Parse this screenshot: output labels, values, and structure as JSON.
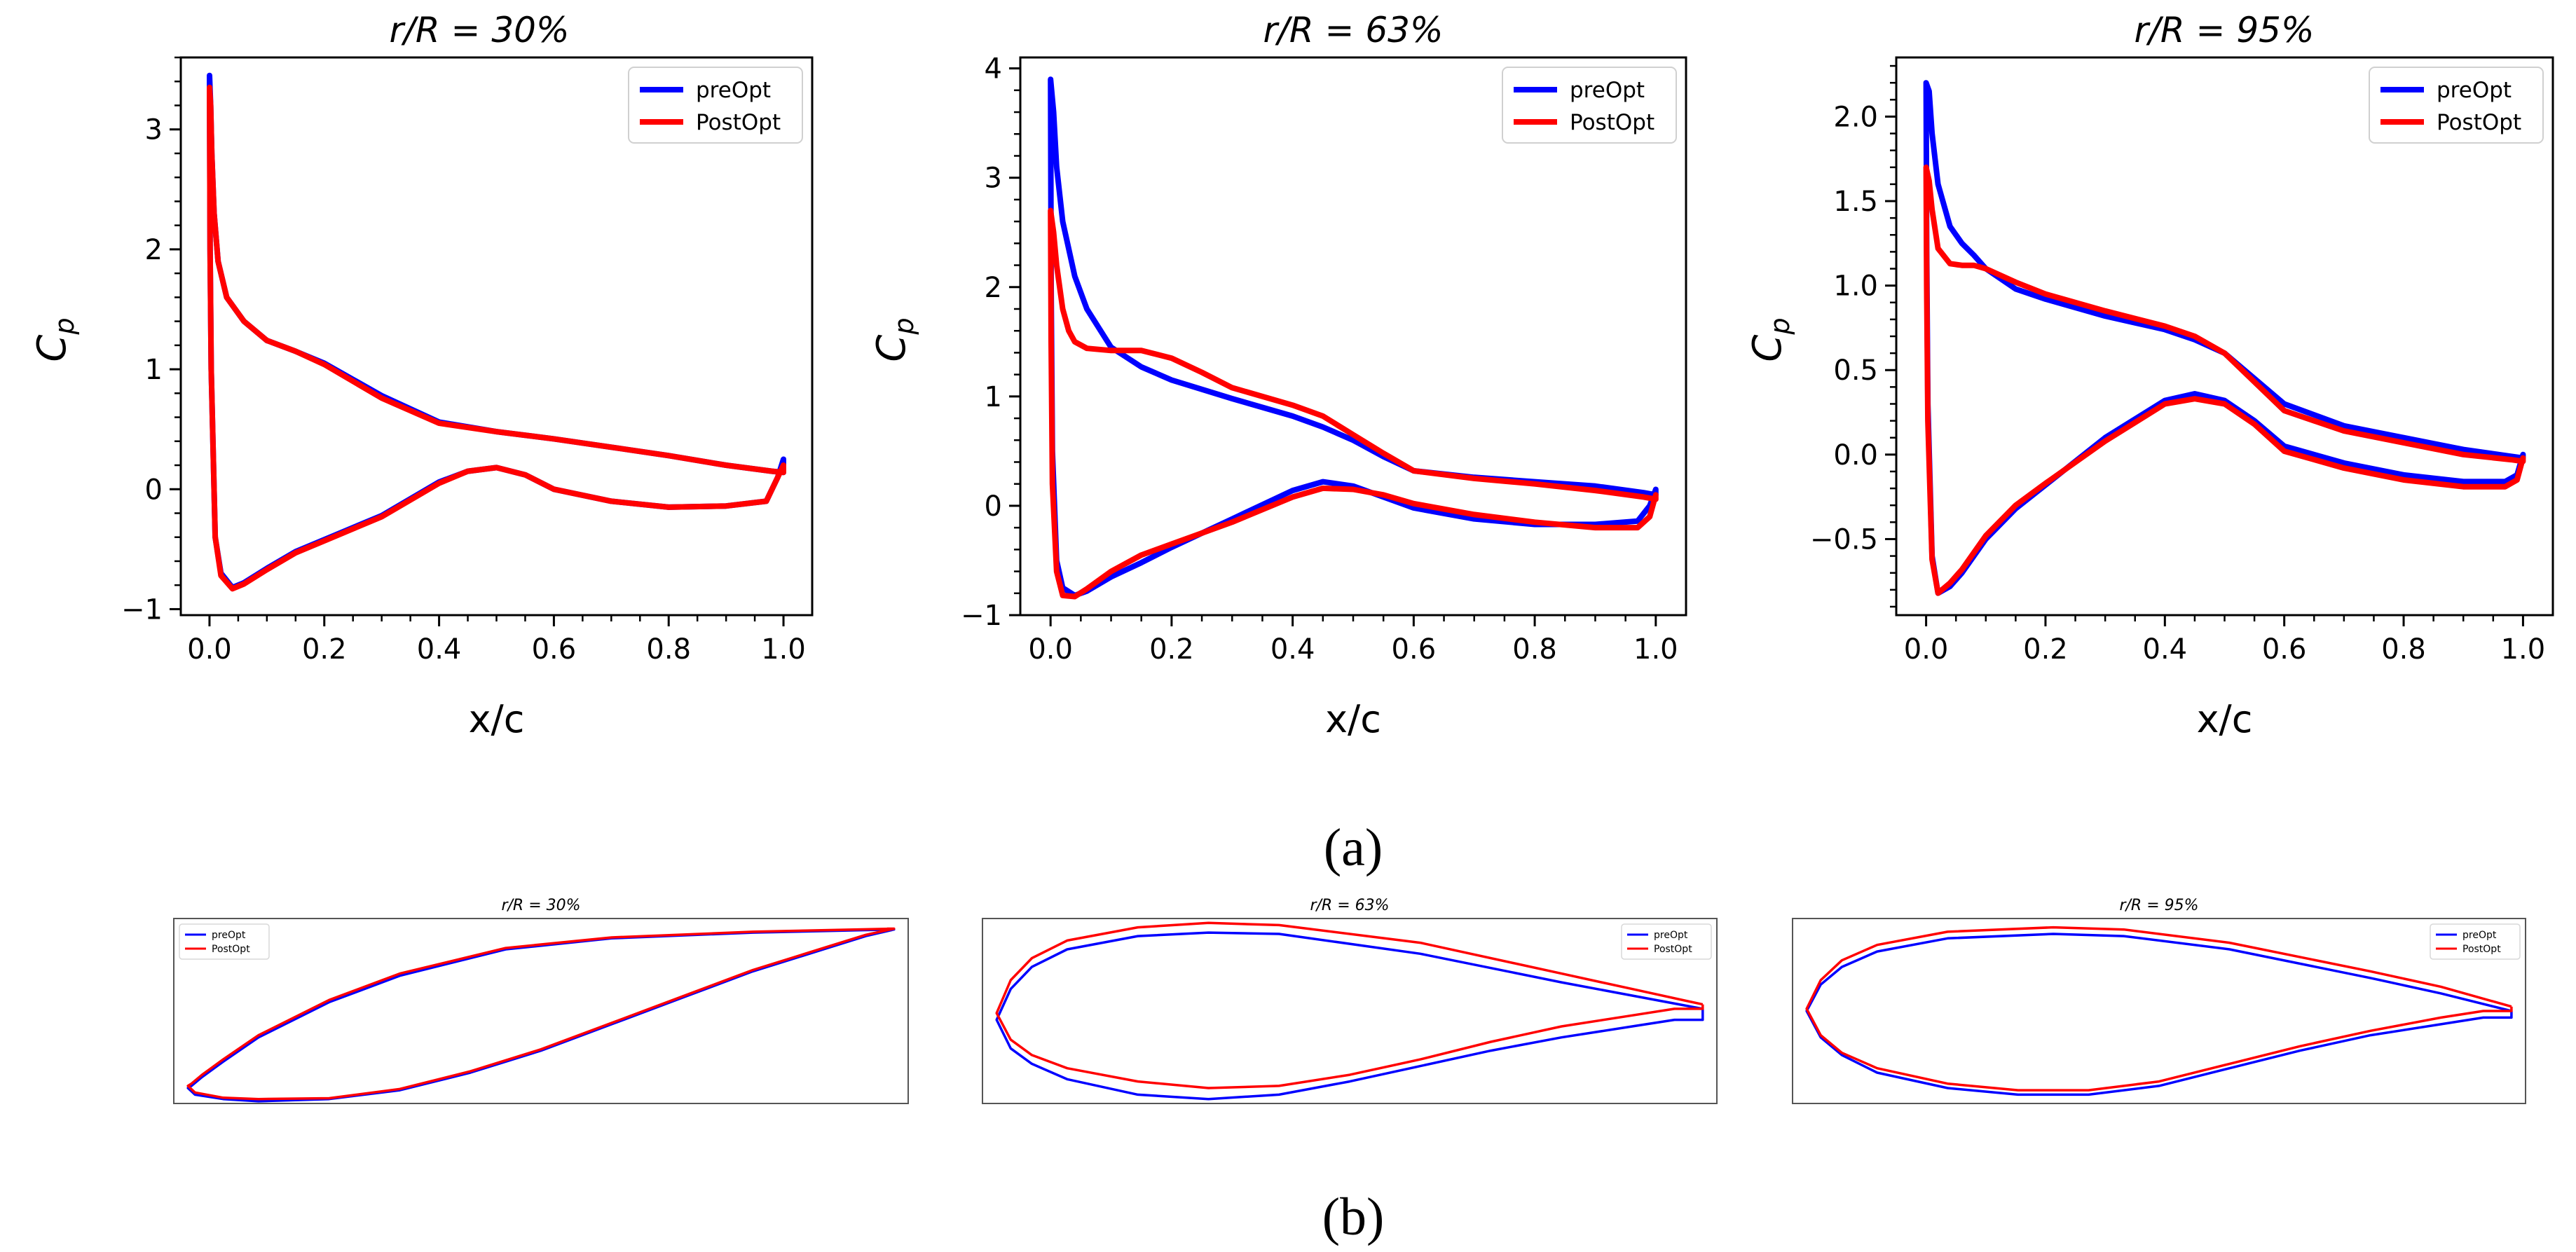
{
  "colors": {
    "preOpt": "#0000ff",
    "PostOpt": "#ff0000",
    "axis": "#000000"
  },
  "captions": {
    "a": "(a)",
    "b": "(b)"
  },
  "chart_data": [
    {
      "type": "line",
      "title": "r/R = 30%",
      "xlabel": "x/c",
      "ylabel": "C",
      "ylabel_sub": "p",
      "xlim": [
        -0.05,
        1.05
      ],
      "ylim": [
        -1.05,
        3.6
      ],
      "xticks": [
        0.0,
        0.2,
        0.4,
        0.6,
        0.8,
        1.0
      ],
      "xtick_labels": [
        "0.0",
        "0.2",
        "0.4",
        "0.6",
        "0.8",
        "1.0"
      ],
      "yticks": [
        -1,
        0,
        1,
        2,
        3
      ],
      "ytick_labels": [
        "−1",
        "0",
        "1",
        "2",
        "3"
      ],
      "legend": {
        "position": "top-right",
        "entries": [
          "preOpt",
          "PostOpt"
        ]
      },
      "series": [
        {
          "name": "preOpt",
          "x": [
            1.0,
            0.98,
            0.9,
            0.8,
            0.7,
            0.6,
            0.5,
            0.4,
            0.3,
            0.2,
            0.15,
            0.1,
            0.06,
            0.03,
            0.015,
            0.008,
            0.004,
            0.002,
            0.0,
            0.001,
            0.003,
            0.01,
            0.02,
            0.04,
            0.06,
            0.1,
            0.15,
            0.2,
            0.3,
            0.4,
            0.45,
            0.5,
            0.55,
            0.6,
            0.7,
            0.8,
            0.9,
            0.97,
            0.99,
            1.0,
            1.0
          ],
          "y": [
            0.14,
            0.15,
            0.2,
            0.28,
            0.35,
            0.42,
            0.48,
            0.56,
            0.78,
            1.05,
            1.15,
            1.24,
            1.4,
            1.6,
            1.9,
            2.3,
            2.8,
            3.2,
            3.45,
            2.0,
            1.0,
            -0.4,
            -0.7,
            -0.82,
            -0.78,
            -0.66,
            -0.52,
            -0.42,
            -0.22,
            0.06,
            0.15,
            0.18,
            0.12,
            0.0,
            -0.1,
            -0.15,
            -0.14,
            -0.1,
            0.1,
            0.25,
            0.14
          ]
        },
        {
          "name": "PostOpt",
          "x": [
            1.0,
            0.98,
            0.9,
            0.8,
            0.7,
            0.6,
            0.5,
            0.4,
            0.3,
            0.2,
            0.15,
            0.1,
            0.06,
            0.03,
            0.015,
            0.008,
            0.004,
            0.002,
            0.0,
            0.001,
            0.003,
            0.01,
            0.02,
            0.04,
            0.06,
            0.1,
            0.15,
            0.2,
            0.3,
            0.4,
            0.45,
            0.5,
            0.55,
            0.6,
            0.7,
            0.8,
            0.9,
            0.97,
            0.99,
            1.0,
            1.0
          ],
          "y": [
            0.14,
            0.15,
            0.2,
            0.28,
            0.35,
            0.42,
            0.48,
            0.55,
            0.76,
            1.04,
            1.15,
            1.24,
            1.4,
            1.6,
            1.9,
            2.3,
            2.8,
            3.2,
            3.35,
            2.0,
            1.0,
            -0.4,
            -0.72,
            -0.83,
            -0.79,
            -0.67,
            -0.53,
            -0.43,
            -0.23,
            0.05,
            0.15,
            0.18,
            0.12,
            0.0,
            -0.1,
            -0.15,
            -0.14,
            -0.1,
            0.1,
            0.2,
            0.14
          ]
        }
      ]
    },
    {
      "type": "line",
      "title": "r/R = 63%",
      "xlabel": "x/c",
      "ylabel": "C",
      "ylabel_sub": "p",
      "xlim": [
        -0.05,
        1.05
      ],
      "ylim": [
        -1.0,
        4.1
      ],
      "xticks": [
        0.0,
        0.2,
        0.4,
        0.6,
        0.8,
        1.0
      ],
      "xtick_labels": [
        "0.0",
        "0.2",
        "0.4",
        "0.6",
        "0.8",
        "1.0"
      ],
      "yticks": [
        -1,
        0,
        1,
        2,
        3,
        4
      ],
      "ytick_labels": [
        "−1",
        "0",
        "1",
        "2",
        "3",
        "4"
      ],
      "legend": {
        "position": "top-right",
        "entries": [
          "preOpt",
          "PostOpt"
        ]
      },
      "series": [
        {
          "name": "preOpt",
          "x": [
            1.0,
            0.98,
            0.9,
            0.8,
            0.7,
            0.6,
            0.55,
            0.5,
            0.45,
            0.4,
            0.3,
            0.2,
            0.15,
            0.1,
            0.06,
            0.04,
            0.02,
            0.01,
            0.005,
            0.0,
            0.001,
            0.003,
            0.01,
            0.02,
            0.04,
            0.06,
            0.1,
            0.15,
            0.2,
            0.3,
            0.4,
            0.45,
            0.5,
            0.55,
            0.6,
            0.7,
            0.8,
            0.9,
            0.97,
            0.99,
            1.0,
            1.0
          ],
          "y": [
            0.1,
            0.12,
            0.18,
            0.22,
            0.26,
            0.32,
            0.45,
            0.6,
            0.72,
            0.82,
            0.98,
            1.15,
            1.27,
            1.45,
            1.8,
            2.1,
            2.6,
            3.1,
            3.6,
            3.9,
            2.0,
            0.5,
            -0.5,
            -0.75,
            -0.82,
            -0.78,
            -0.65,
            -0.52,
            -0.38,
            -0.12,
            0.14,
            0.22,
            0.18,
            0.08,
            -0.02,
            -0.12,
            -0.17,
            -0.17,
            -0.14,
            0.0,
            0.15,
            0.1
          ]
        },
        {
          "name": "PostOpt",
          "x": [
            1.0,
            0.98,
            0.9,
            0.8,
            0.7,
            0.6,
            0.55,
            0.5,
            0.45,
            0.4,
            0.3,
            0.25,
            0.2,
            0.15,
            0.1,
            0.06,
            0.04,
            0.03,
            0.02,
            0.01,
            0.005,
            0.0,
            0.001,
            0.003,
            0.01,
            0.02,
            0.04,
            0.06,
            0.1,
            0.15,
            0.2,
            0.3,
            0.4,
            0.45,
            0.5,
            0.55,
            0.6,
            0.7,
            0.8,
            0.9,
            0.97,
            0.99,
            1.0,
            1.0
          ],
          "y": [
            0.06,
            0.08,
            0.14,
            0.2,
            0.25,
            0.32,
            0.48,
            0.65,
            0.82,
            0.92,
            1.08,
            1.22,
            1.35,
            1.42,
            1.42,
            1.44,
            1.5,
            1.6,
            1.8,
            2.2,
            2.5,
            2.7,
            1.5,
            0.2,
            -0.6,
            -0.82,
            -0.83,
            -0.76,
            -0.6,
            -0.45,
            -0.35,
            -0.15,
            0.08,
            0.16,
            0.15,
            0.1,
            0.02,
            -0.08,
            -0.15,
            -0.2,
            -0.2,
            -0.1,
            0.1,
            0.06
          ]
        }
      ]
    },
    {
      "type": "line",
      "title": "r/R = 95%",
      "xlabel": "x/c",
      "ylabel": "C",
      "ylabel_sub": "p",
      "xlim": [
        -0.05,
        1.05
      ],
      "ylim": [
        -0.95,
        2.35
      ],
      "xticks": [
        0.0,
        0.2,
        0.4,
        0.6,
        0.8,
        1.0
      ],
      "xtick_labels": [
        "0.0",
        "0.2",
        "0.4",
        "0.6",
        "0.8",
        "1.0"
      ],
      "yticks": [
        -0.5,
        0.0,
        0.5,
        1.0,
        1.5,
        2.0
      ],
      "ytick_labels": [
        "−0.5",
        "0.0",
        "0.5",
        "1.0",
        "1.5",
        "2.0"
      ],
      "legend": {
        "position": "top-right",
        "entries": [
          "preOpt",
          "PostOpt"
        ]
      },
      "series": [
        {
          "name": "preOpt",
          "x": [
            1.0,
            0.98,
            0.9,
            0.8,
            0.7,
            0.6,
            0.55,
            0.5,
            0.45,
            0.4,
            0.3,
            0.2,
            0.15,
            0.1,
            0.08,
            0.06,
            0.04,
            0.02,
            0.01,
            0.005,
            0.0,
            0.001,
            0.003,
            0.01,
            0.02,
            0.04,
            0.06,
            0.1,
            0.15,
            0.2,
            0.3,
            0.4,
            0.45,
            0.5,
            0.55,
            0.6,
            0.7,
            0.8,
            0.9,
            0.97,
            0.99,
            1.0,
            1.0
          ],
          "y": [
            -0.02,
            -0.01,
            0.03,
            0.1,
            0.17,
            0.3,
            0.45,
            0.6,
            0.68,
            0.74,
            0.82,
            0.92,
            0.98,
            1.1,
            1.18,
            1.25,
            1.35,
            1.6,
            1.9,
            2.15,
            2.2,
            1.2,
            0.3,
            -0.6,
            -0.82,
            -0.78,
            -0.7,
            -0.5,
            -0.32,
            -0.18,
            0.1,
            0.32,
            0.36,
            0.32,
            0.2,
            0.05,
            -0.05,
            -0.12,
            -0.16,
            -0.16,
            -0.12,
            0.0,
            -0.02
          ]
        },
        {
          "name": "PostOpt",
          "x": [
            1.0,
            0.98,
            0.9,
            0.8,
            0.7,
            0.6,
            0.55,
            0.5,
            0.45,
            0.4,
            0.3,
            0.2,
            0.15,
            0.1,
            0.08,
            0.06,
            0.04,
            0.02,
            0.01,
            0.005,
            0.0,
            0.001,
            0.003,
            0.01,
            0.02,
            0.04,
            0.06,
            0.1,
            0.15,
            0.2,
            0.3,
            0.4,
            0.45,
            0.5,
            0.55,
            0.6,
            0.7,
            0.8,
            0.9,
            0.97,
            0.99,
            1.0,
            1.0
          ],
          "y": [
            -0.04,
            -0.03,
            0.0,
            0.07,
            0.14,
            0.26,
            0.43,
            0.6,
            0.7,
            0.76,
            0.85,
            0.95,
            1.02,
            1.1,
            1.12,
            1.12,
            1.13,
            1.22,
            1.45,
            1.62,
            1.7,
            1.0,
            0.2,
            -0.62,
            -0.82,
            -0.76,
            -0.68,
            -0.48,
            -0.3,
            -0.17,
            0.08,
            0.3,
            0.33,
            0.3,
            0.18,
            0.02,
            -0.08,
            -0.15,
            -0.19,
            -0.19,
            -0.15,
            -0.02,
            -0.04
          ]
        }
      ]
    },
    {
      "type": "line",
      "title": "r/R = 30%",
      "xlim": [
        -0.02,
        1.02
      ],
      "ylim": [
        -0.21,
        0.21
      ],
      "axes_visible": false,
      "legend": {
        "position": "top-left",
        "entries": [
          "preOpt",
          "PostOpt"
        ]
      },
      "series": [
        {
          "name": "preOpt",
          "x": [
            1.0,
            0.8,
            0.6,
            0.45,
            0.3,
            0.2,
            0.1,
            0.05,
            0.02,
            0.005,
            0.0,
            0.01,
            0.05,
            0.1,
            0.2,
            0.3,
            0.4,
            0.5,
            0.6,
            0.7,
            0.8,
            0.9,
            0.96,
            1.0,
            0.99
          ],
          "y": [
            0.185,
            0.178,
            0.165,
            0.14,
            0.08,
            0.02,
            -0.06,
            -0.115,
            -0.15,
            -0.17,
            -0.175,
            -0.19,
            -0.2,
            -0.205,
            -0.2,
            -0.18,
            -0.14,
            -0.09,
            -0.03,
            0.03,
            0.09,
            0.14,
            0.17,
            0.185,
            0.185
          ]
        },
        {
          "name": "PostOpt",
          "x": [
            1.0,
            0.8,
            0.6,
            0.45,
            0.3,
            0.2,
            0.1,
            0.05,
            0.02,
            0.005,
            0.0,
            0.01,
            0.05,
            0.1,
            0.2,
            0.3,
            0.4,
            0.5,
            0.6,
            0.7,
            0.8,
            0.9,
            0.96,
            1.0,
            0.99
          ],
          "y": [
            0.187,
            0.18,
            0.167,
            0.143,
            0.085,
            0.025,
            -0.055,
            -0.11,
            -0.145,
            -0.165,
            -0.17,
            -0.185,
            -0.197,
            -0.2,
            -0.198,
            -0.177,
            -0.137,
            -0.087,
            -0.027,
            0.033,
            0.093,
            0.143,
            0.173,
            0.187,
            0.187
          ]
        }
      ]
    },
    {
      "type": "line",
      "title": "r/R = 63%",
      "xlim": [
        -0.02,
        1.02
      ],
      "ylim": [
        -0.21,
        0.21
      ],
      "axes_visible": false,
      "legend": {
        "position": "top-right",
        "entries": [
          "preOpt",
          "PostOpt"
        ]
      },
      "series": [
        {
          "name": "preOpt",
          "x": [
            1.0,
            0.9,
            0.8,
            0.6,
            0.4,
            0.3,
            0.2,
            0.1,
            0.05,
            0.02,
            0.0,
            0.02,
            0.05,
            0.1,
            0.2,
            0.3,
            0.4,
            0.5,
            0.6,
            0.7,
            0.8,
            0.9,
            0.96,
            1.0,
            1.0
          ],
          "y": [
            0.005,
            0.035,
            0.065,
            0.13,
            0.175,
            0.178,
            0.17,
            0.14,
            0.1,
            0.05,
            -0.02,
            -0.085,
            -0.12,
            -0.155,
            -0.19,
            -0.2,
            -0.19,
            -0.16,
            -0.125,
            -0.09,
            -0.06,
            -0.035,
            -0.02,
            -0.02,
            0.005
          ]
        },
        {
          "name": "PostOpt",
          "x": [
            1.0,
            0.9,
            0.8,
            0.6,
            0.4,
            0.3,
            0.2,
            0.1,
            0.05,
            0.02,
            0.0,
            0.02,
            0.05,
            0.1,
            0.2,
            0.3,
            0.4,
            0.5,
            0.6,
            0.7,
            0.8,
            0.9,
            0.96,
            1.0,
            1.0
          ],
          "y": [
            0.015,
            0.05,
            0.085,
            0.155,
            0.195,
            0.2,
            0.19,
            0.16,
            0.12,
            0.07,
            -0.005,
            -0.065,
            -0.1,
            -0.13,
            -0.16,
            -0.175,
            -0.17,
            -0.145,
            -0.11,
            -0.07,
            -0.035,
            -0.01,
            0.005,
            0.005,
            0.015
          ]
        }
      ]
    },
    {
      "type": "line",
      "title": "r/R = 95%",
      "xlim": [
        -0.02,
        1.02
      ],
      "ylim": [
        -0.21,
        0.21
      ],
      "axes_visible": false,
      "legend": {
        "position": "top-right",
        "entries": [
          "preOpt",
          "PostOpt"
        ]
      },
      "series": [
        {
          "name": "preOpt",
          "x": [
            1.0,
            0.9,
            0.8,
            0.6,
            0.45,
            0.35,
            0.2,
            0.1,
            0.05,
            0.02,
            0.0,
            0.02,
            0.05,
            0.1,
            0.2,
            0.3,
            0.4,
            0.5,
            0.6,
            0.7,
            0.8,
            0.9,
            0.96,
            1.0,
            1.0
          ],
          "y": [
            0.0,
            0.04,
            0.075,
            0.14,
            0.17,
            0.175,
            0.165,
            0.135,
            0.1,
            0.06,
            0.0,
            -0.06,
            -0.1,
            -0.14,
            -0.175,
            -0.19,
            -0.19,
            -0.17,
            -0.13,
            -0.09,
            -0.055,
            -0.03,
            -0.015,
            -0.015,
            0.0
          ]
        },
        {
          "name": "PostOpt",
          "x": [
            1.0,
            0.9,
            0.8,
            0.6,
            0.45,
            0.35,
            0.2,
            0.1,
            0.05,
            0.02,
            0.0,
            0.02,
            0.05,
            0.1,
            0.2,
            0.3,
            0.4,
            0.5,
            0.6,
            0.7,
            0.8,
            0.9,
            0.96,
            1.0,
            1.0
          ],
          "y": [
            0.01,
            0.055,
            0.09,
            0.155,
            0.185,
            0.19,
            0.18,
            0.15,
            0.115,
            0.07,
            0.005,
            -0.055,
            -0.095,
            -0.13,
            -0.165,
            -0.18,
            -0.18,
            -0.16,
            -0.12,
            -0.08,
            -0.045,
            -0.015,
            0.0,
            0.0,
            0.01
          ]
        }
      ]
    }
  ]
}
